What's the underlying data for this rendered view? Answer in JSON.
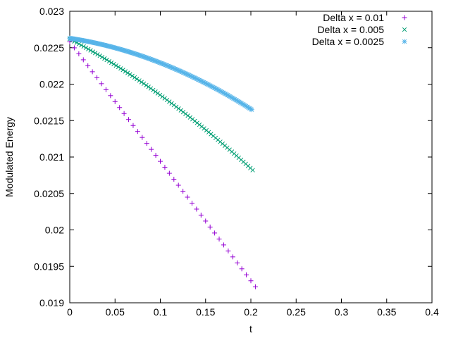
{
  "chart_data": {
    "type": "scatter",
    "title": "",
    "xlabel": "t",
    "ylabel": "Modulated Energy",
    "xlim": [
      0,
      0.4
    ],
    "ylim": [
      0.019,
      0.023
    ],
    "xticks": [
      "0",
      "0.05",
      "0.1",
      "0.15",
      "0.2",
      "0.25",
      "0.3",
      "0.35",
      "0.4"
    ],
    "yticks": [
      "0.019",
      "0.0195",
      "0.02",
      "0.0205",
      "0.021",
      "0.0215",
      "0.022",
      "0.0225",
      "0.023"
    ],
    "grid": false,
    "legend_position": "top-right",
    "series": [
      {
        "name": "Delta x = 0.01",
        "marker": "plus",
        "color": "#9400d3",
        "x_start": 0.0,
        "x_end": 0.205,
        "count": 42,
        "y_start": 0.02258,
        "y_end": 0.01922,
        "curvature": 0.0
      },
      {
        "name": "Delta x = 0.005",
        "marker": "cross",
        "color": "#009e73",
        "x_start": 0.0,
        "x_end": 0.202,
        "count": 80,
        "y_start": 0.02262,
        "y_end": 0.02082,
        "curvature": 0.00012
      },
      {
        "name": "Delta x = 0.0025",
        "marker": "star",
        "color": "#56b4e9",
        "x_start": 0.0,
        "x_end": 0.201,
        "count": 160,
        "y_start": 0.02263,
        "y_end": 0.02165,
        "curvature": 0.00015
      }
    ]
  }
}
